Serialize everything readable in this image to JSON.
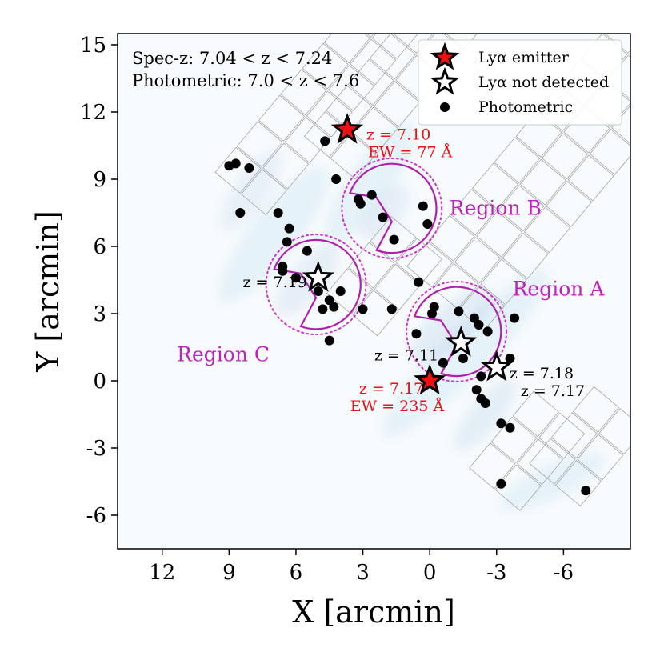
{
  "chart_data": {
    "type": "scatter",
    "xlabel": "X [arcmin]",
    "ylabel": "Y [arcmin]",
    "xlim": [
      14,
      -9
    ],
    "ylim": [
      -7.5,
      15.5
    ],
    "xticks": [
      12,
      9,
      6,
      3,
      0,
      -3,
      -6
    ],
    "yticks": [
      15,
      12,
      9,
      6,
      3,
      0,
      -3,
      -6
    ],
    "grid": false,
    "notes": [
      "Spec-z: 7.04 < z < 7.24",
      "Photometric: 7.0 < z < 7.6"
    ],
    "legend": {
      "placement": "top-right",
      "entries": [
        "Lyα emitter",
        "Lyα not detected",
        "Photometric"
      ]
    },
    "series": [
      {
        "name": "Lyα emitter",
        "marker": "filled-red-star",
        "points": [
          {
            "x": 3.7,
            "y": 11.2,
            "label": "z = 7.10",
            "ew": "EW = 77 Å"
          },
          {
            "x": 0.0,
            "y": 0.0,
            "label": "z = 7.17",
            "ew": "EW = 235 Å"
          }
        ]
      },
      {
        "name": "Lyα not detected",
        "marker": "open-star",
        "points": [
          {
            "x": 5.0,
            "y": 4.6,
            "label": "z = 7.19"
          },
          {
            "x": -1.4,
            "y": 1.7,
            "label": "z = 7.11"
          },
          {
            "x": -3.0,
            "y": 0.6,
            "label": "z = 7.18",
            "label2": "z = 7.17"
          }
        ]
      },
      {
        "name": "Photometric",
        "marker": "black-dot",
        "points": [
          [
            9.0,
            9.6
          ],
          [
            8.7,
            9.7
          ],
          [
            8.1,
            9.5
          ],
          [
            8.5,
            7.5
          ],
          [
            6.8,
            7.5
          ],
          [
            6.3,
            6.8
          ],
          [
            6.4,
            6.2
          ],
          [
            5.5,
            5.8
          ],
          [
            6.6,
            5.1
          ],
          [
            6.6,
            4.9
          ],
          [
            6.0,
            4.6
          ],
          [
            5.0,
            4.0
          ],
          [
            4.8,
            3.2
          ],
          [
            4.5,
            3.6
          ],
          [
            4.0,
            4.0
          ],
          [
            4.3,
            3.3
          ],
          [
            3.0,
            3.2
          ],
          [
            4.5,
            1.8
          ],
          [
            4.7,
            10.7
          ],
          [
            4.2,
            9.0
          ],
          [
            3.2,
            8.1
          ],
          [
            3.1,
            7.9
          ],
          [
            2.6,
            8.3
          ],
          [
            2.1,
            7.3
          ],
          [
            1.6,
            6.3
          ],
          [
            0.3,
            7.8
          ],
          [
            0.1,
            7.0
          ],
          [
            0.5,
            4.4
          ],
          [
            1.7,
            3.2
          ],
          [
            0.6,
            2.1
          ],
          [
            -0.2,
            3.3
          ],
          [
            -0.1,
            3.0
          ],
          [
            -1.3,
            3.1
          ],
          [
            -2.0,
            2.8
          ],
          [
            -2.2,
            2.5
          ],
          [
            -2.6,
            2.2
          ],
          [
            -3.8,
            2.8
          ],
          [
            -1.5,
            1.0
          ],
          [
            -0.6,
            0.8
          ],
          [
            -3.6,
            1.0
          ],
          [
            -2.3,
            -0.8
          ],
          [
            -2.5,
            -1.0
          ],
          [
            -2.3,
            0.2
          ],
          [
            -2.1,
            -0.4
          ],
          [
            -3.2,
            -1.9
          ],
          [
            -3.6,
            -2.1
          ],
          [
            -3.2,
            -4.6
          ],
          [
            -7.0,
            -4.9
          ]
        ]
      }
    ],
    "regions": [
      {
        "name": "Region A",
        "center": {
          "x": -1.2,
          "y": 2.2
        },
        "radius": 2.0
      },
      {
        "name": "Region B",
        "center": {
          "x": 1.7,
          "y": 7.7
        },
        "radius": 2.0
      },
      {
        "name": "Region C",
        "center": {
          "x": 5.1,
          "y": 4.3
        },
        "radius": 2.0
      }
    ],
    "density_blobs": [
      {
        "x": 7.0,
        "y": 6.5,
        "rx": 3.8,
        "ry": 1.1,
        "angle": -52,
        "opacity": 0.07
      },
      {
        "x": 8.0,
        "y": 8.5,
        "rx": 2.2,
        "ry": 0.8,
        "angle": -55,
        "opacity": 0.08
      },
      {
        "x": 5.5,
        "y": 4.5,
        "rx": 2.0,
        "ry": 0.8,
        "angle": -50,
        "opacity": 0.09
      },
      {
        "x": 2.7,
        "y": 8.8,
        "rx": 3.3,
        "ry": 1.0,
        "angle": -55,
        "opacity": 0.07
      },
      {
        "x": 2.0,
        "y": 7.5,
        "rx": 1.5,
        "ry": 0.7,
        "angle": -50,
        "opacity": 0.09
      },
      {
        "x": -1.6,
        "y": 1.2,
        "rx": 5.2,
        "ry": 1.1,
        "angle": -45,
        "opacity": 0.07
      },
      {
        "x": -1.0,
        "y": 2.5,
        "rx": 2.3,
        "ry": 0.9,
        "angle": -40,
        "opacity": 0.11
      },
      {
        "x": -2.5,
        "y": -1.5,
        "rx": 2.0,
        "ry": 0.7,
        "angle": -50,
        "opacity": 0.1
      },
      {
        "x": -5.5,
        "y": -4.5,
        "rx": 2.6,
        "ry": 0.8,
        "angle": -25,
        "opacity": 0.07
      }
    ]
  }
}
